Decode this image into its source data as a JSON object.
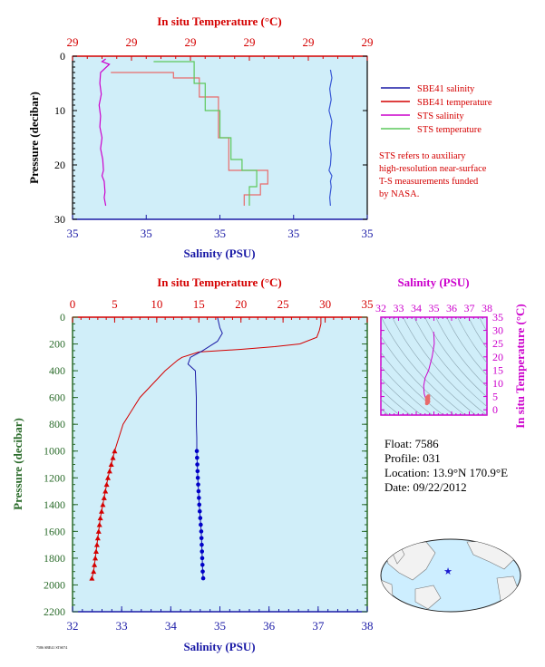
{
  "chart_data": [
    {
      "type": "line",
      "panel": "near-surface",
      "xlabel_top": "In situ Temperature (°C)",
      "xlabel_bottom": "Salinity (PSU)",
      "ylabel": "Pressure (decibar)",
      "top_ticks": [
        "29",
        "29",
        "29",
        "29",
        "29",
        "29"
      ],
      "bottom_ticks": [
        "35",
        "35",
        "35",
        "35",
        "35"
      ],
      "y_ticks": [
        "0",
        "10",
        "20",
        "30"
      ],
      "ylim": [
        0,
        30
      ],
      "xlim_temperature": [
        29.0,
        29.4
      ],
      "xlim_salinity": [
        34.8,
        35.2
      ],
      "grid": false,
      "legend": [
        {
          "label": "SBE41 salinity",
          "color": "#1a1aa6"
        },
        {
          "label": "SBE41 temperature",
          "color": "#d40000"
        },
        {
          "label": "STS salinity",
          "color": "#cc00cc"
        },
        {
          "label": "STS temperature",
          "color": "#5cc85c"
        }
      ],
      "note": [
        "STS refers to auxiliary",
        "high-resolution near-surface",
        "T-S measurements funded",
        "by NASA."
      ],
      "series": [
        {
          "name": "SBE41 salinity",
          "x": [
            35.15,
            35.152,
            35.149,
            35.151,
            35.148,
            35.152,
            35.15,
            35.149,
            35.151,
            35.15,
            35.148,
            35.152,
            35.15,
            35.151,
            35.149,
            35.15
          ],
          "y": [
            2.5,
            4,
            6,
            8,
            10,
            12,
            14,
            16,
            18,
            20,
            21,
            22,
            23,
            24,
            26,
            27.5
          ]
        },
        {
          "name": "SBE41 temperature",
          "x": [
            29.052,
            29.137,
            29.137,
            29.172,
            29.172,
            29.198,
            29.198,
            29.212,
            29.212,
            29.265,
            29.265,
            29.255,
            29.255,
            29.233,
            29.233
          ],
          "y": [
            3,
            3,
            4,
            4,
            7.5,
            7.5,
            15,
            15,
            21,
            21,
            23.5,
            23.5,
            25.5,
            25.5,
            27.5
          ]
        },
        {
          "name": "STS salinity",
          "x": [
            34.845,
            34.84,
            34.85,
            34.838,
            34.837,
            34.839,
            34.836,
            34.838,
            34.837,
            34.84,
            34.838,
            34.841,
            34.842,
            34.84,
            34.843,
            34.844,
            34.843,
            34.845
          ],
          "y": [
            0.5,
            1,
            1.5,
            3,
            5,
            7,
            9,
            11,
            13,
            15,
            17,
            19,
            21,
            22,
            23,
            25,
            26,
            27.5
          ]
        },
        {
          "name": "STS temperature",
          "x": [
            29.11,
            29.165,
            29.165,
            29.18,
            29.18,
            29.2,
            29.2,
            29.215,
            29.215,
            29.23,
            29.23,
            29.25,
            29.25,
            29.24,
            29.24
          ],
          "y": [
            1,
            1,
            5,
            5,
            10,
            10,
            15,
            15,
            19,
            19,
            21,
            21,
            24,
            24,
            27.5
          ]
        }
      ]
    },
    {
      "type": "line",
      "panel": "full-profile",
      "xlabel_top": "In situ Temperature (°C)",
      "xlabel_bottom": "Salinity (PSU)",
      "ylabel": "Pressure (decibar)",
      "top_ticks": [
        "0",
        "5",
        "10",
        "15",
        "20",
        "25",
        "30",
        "35"
      ],
      "bottom_ticks": [
        "32",
        "33",
        "34",
        "35",
        "36",
        "37",
        "38"
      ],
      "y_ticks": [
        "0",
        "200",
        "400",
        "600",
        "800",
        "1000",
        "1200",
        "1400",
        "1600",
        "1800",
        "2000",
        "2200"
      ],
      "ylim": [
        0,
        2200
      ],
      "xlim_temperature": [
        0,
        35
      ],
      "xlim_salinity": [
        32,
        38
      ],
      "grid": false,
      "series": [
        {
          "name": "Temperature",
          "x": [
            29.5,
            29.5,
            29.3,
            29.0,
            27.0,
            24.0,
            20.0,
            15.0,
            14.0,
            13.0,
            12.5,
            11.0,
            9.5,
            8.0,
            7.0,
            6.0,
            5.0,
            4.6,
            4.2,
            3.9,
            3.6,
            3.3,
            3.1,
            2.9,
            2.7,
            2.5,
            2.3
          ],
          "y": [
            0,
            50,
            100,
            150,
            200,
            220,
            240,
            260,
            280,
            300,
            320,
            400,
            500,
            600,
            700,
            800,
            1000,
            1100,
            1200,
            1300,
            1400,
            1500,
            1600,
            1700,
            1800,
            1900,
            1950
          ]
        },
        {
          "name": "Salinity",
          "x": [
            34.95,
            35.0,
            35.05,
            34.95,
            34.65,
            34.4,
            34.35,
            34.5,
            34.52,
            34.52,
            34.53,
            34.53,
            34.55,
            34.58,
            34.6,
            34.62,
            34.63,
            34.64,
            34.65,
            34.66
          ],
          "y": [
            0,
            80,
            120,
            180,
            250,
            300,
            350,
            400,
            600,
            800,
            900,
            1000,
            1200,
            1400,
            1500,
            1600,
            1700,
            1800,
            1900,
            1950
          ]
        }
      ]
    },
    {
      "type": "scatter",
      "panel": "T-S diagram",
      "xlabel": "Salinity (PSU)",
      "ylabel": "In situ Temperature (°C)",
      "x_ticks": [
        "32",
        "33",
        "34",
        "35",
        "36",
        "37",
        "38"
      ],
      "y_ticks": [
        "0",
        "5",
        "10",
        "15",
        "20",
        "25",
        "30",
        "35"
      ],
      "xlim": [
        32,
        38
      ],
      "ylim": [
        -2,
        35
      ],
      "series": [
        {
          "name": "Profile",
          "x": [
            34.98,
            35.0,
            35.02,
            34.9,
            34.7,
            34.5,
            34.42,
            34.45,
            34.5,
            34.55,
            34.6,
            34.65
          ],
          "y": [
            29.5,
            28,
            25,
            20,
            15,
            12,
            9,
            6,
            5,
            4,
            3,
            2.4
          ]
        }
      ]
    }
  ],
  "info": {
    "float": "Float:  7586",
    "profile": "Profile:  031",
    "location": "Location:  13.9°N  170.9°E",
    "date": "Date:  09/22/2012"
  },
  "footer": "7586 SBE41 STS074",
  "colors": {
    "panel_bg": "#d0eef9",
    "temperature": "#d40000",
    "salinity": "#1a1aa6",
    "pressure_axis": "#2a6b2a",
    "ts_axis": "#cc00cc",
    "sts_temperature": "#5cc85c",
    "sts_salinity": "#cc00cc"
  }
}
